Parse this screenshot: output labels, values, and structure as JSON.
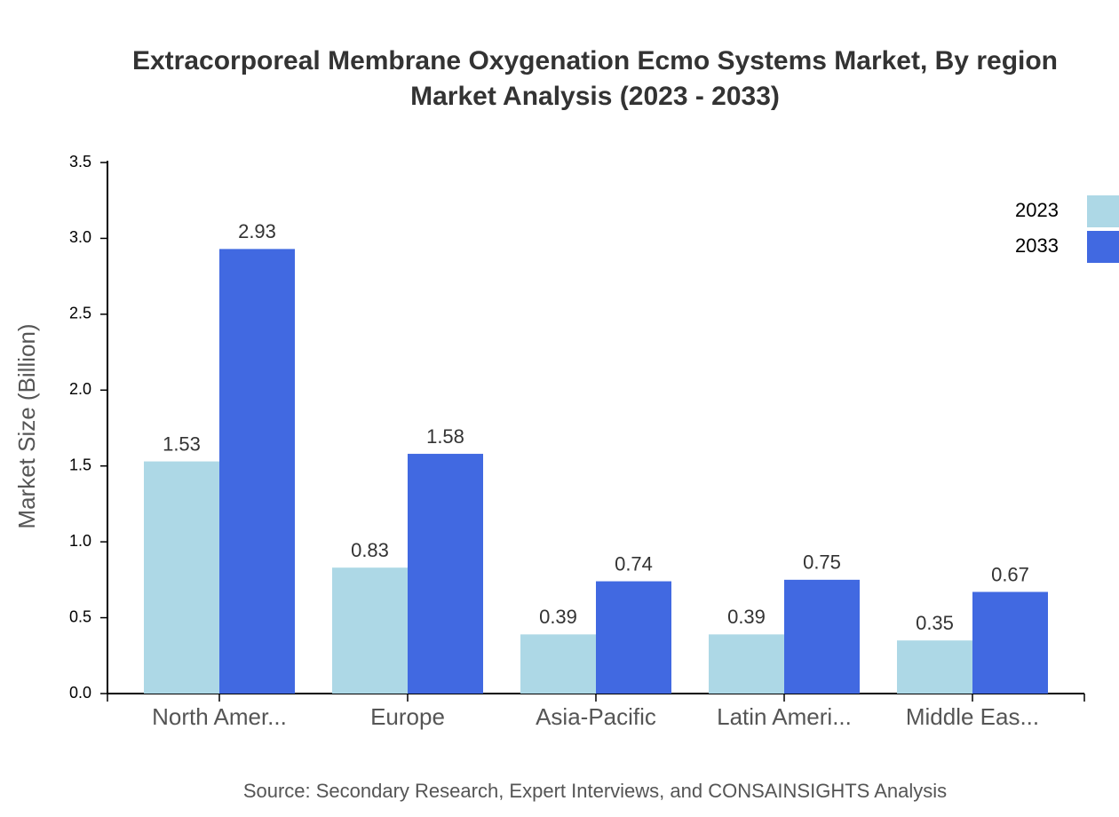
{
  "chart_data": {
    "type": "grouped-bar",
    "title": [
      "Extracorporeal Membrane Oxygenation Ecmo Systems Market, By region",
      "Market Analysis (2023 - 2033)"
    ],
    "y_label": "Market Size (Billion)",
    "source": "Source: Secondary Research, Expert Interviews, and CONSAINSIGHTS Analysis",
    "categories": [
      "North Amer...",
      "Europe",
      "Asia-Pacific",
      "Latin Ameri...",
      "Middle Eas..."
    ],
    "series": [
      {
        "name": "2023",
        "color": "#add8e6",
        "values": [
          1.53,
          0.83,
          0.39,
          0.39,
          0.35
        ]
      },
      {
        "name": "2033",
        "color": "#4169e1",
        "values": [
          2.93,
          1.58,
          0.74,
          0.75,
          0.67
        ]
      }
    ],
    "ylim": [
      0,
      3.5
    ],
    "yticks": [
      {
        "value": 0,
        "label": "0.0"
      },
      0.5,
      {
        "value": 1,
        "label": "1.0"
      },
      1.5,
      {
        "value": 2,
        "label": "2.0"
      },
      2.5,
      {
        "value": 3,
        "label": "3.0"
      },
      3.5
    ],
    "legend": "top-right"
  }
}
